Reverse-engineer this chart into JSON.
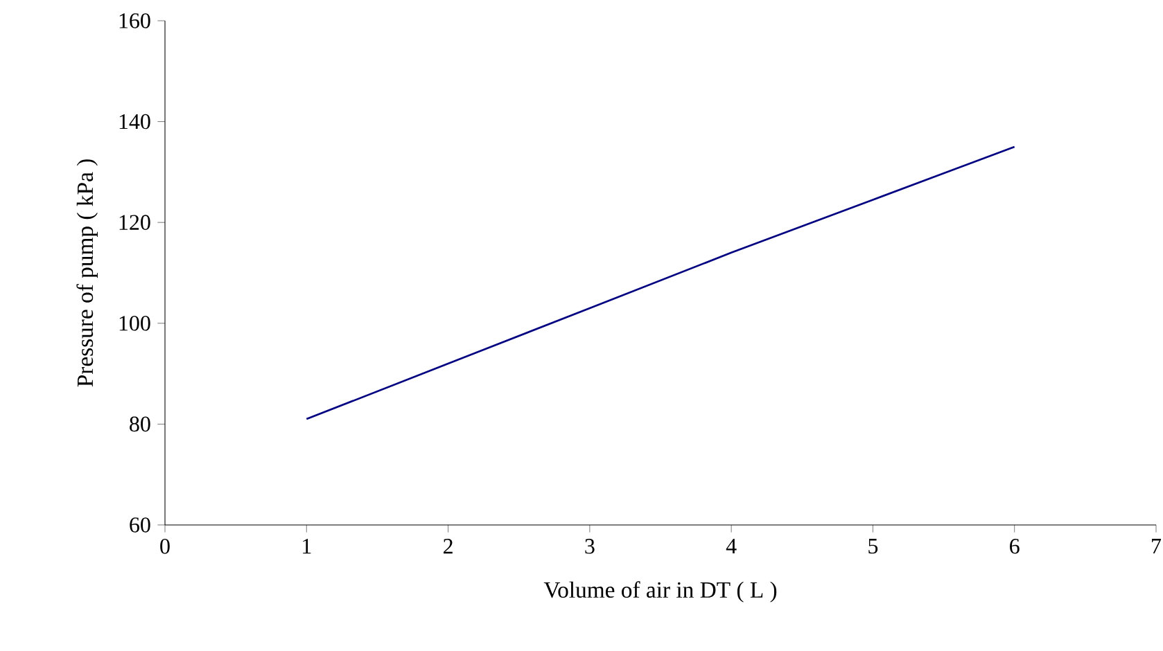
{
  "chart_data": {
    "type": "line",
    "xlabel": "Volume of air in DT ( L )",
    "ylabel": "Pressure of pump ( kPa )",
    "x": [
      1,
      2,
      3,
      4,
      5,
      6
    ],
    "series": [
      {
        "color": "#000080",
        "values": [
          81,
          92,
          103,
          114,
          124.5,
          135
        ]
      }
    ],
    "xlim": [
      0,
      7
    ],
    "xticks": [
      0,
      1,
      2,
      3,
      4,
      5,
      6,
      7
    ],
    "ylim": [
      60,
      160
    ],
    "yticks": [
      60,
      80,
      100,
      120,
      140,
      160
    ],
    "grid": false,
    "marker": "none",
    "line_style": "solid"
  }
}
